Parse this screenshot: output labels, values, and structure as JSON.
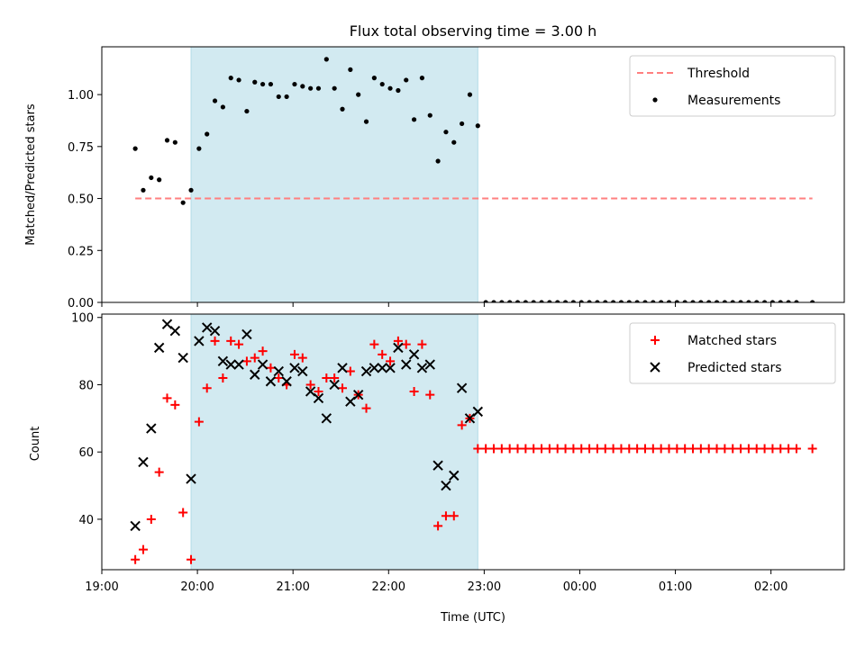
{
  "chart_data": [
    {
      "type": "scatter",
      "panel": "top",
      "title": "Flux total observing time = 3.00 h",
      "xlabel": "",
      "ylabel": "Matched/Predicted stars",
      "x_axis": "time (UTC)",
      "xlim": [
        "19:00",
        "02:46"
      ],
      "ylim": [
        0.0,
        1.23
      ],
      "yticks": [
        0.0,
        0.25,
        0.5,
        0.75,
        1.0
      ],
      "ytick_labels": [
        "0.00",
        "0.25",
        "0.50",
        "0.75",
        "1.00"
      ],
      "show_xtick_labels": false,
      "shaded_interval": [
        "19:56",
        "22:56"
      ],
      "shade_color": "#add8e6",
      "legend": {
        "position": "upper right",
        "entries": [
          "Threshold",
          "Measurements"
        ]
      },
      "series": [
        {
          "name": "Threshold",
          "kind": "dashed-line",
          "color": "#ff7f7f",
          "x": [
            "19:21",
            "02:26"
          ],
          "y": [
            0.5,
            0.5
          ]
        },
        {
          "name": "Measurements",
          "kind": "dot",
          "color": "#000000",
          "x": [
            "19:21",
            "19:26",
            "19:31",
            "19:36",
            "19:41",
            "19:46",
            "19:51",
            "19:56",
            "20:01",
            "20:06",
            "20:11",
            "20:16",
            "20:21",
            "20:26",
            "20:31",
            "20:36",
            "20:41",
            "20:46",
            "20:51",
            "20:56",
            "21:01",
            "21:06",
            "21:11",
            "21:16",
            "21:21",
            "21:26",
            "21:31",
            "21:36",
            "21:41",
            "21:46",
            "21:51",
            "21:56",
            "22:01",
            "22:06",
            "22:11",
            "22:16",
            "22:21",
            "22:26",
            "22:31",
            "22:36",
            "22:41",
            "22:46",
            "22:51",
            "22:56",
            "23:01",
            "23:06",
            "23:11",
            "23:16",
            "23:21",
            "23:26",
            "23:31",
            "23:36",
            "23:41",
            "23:46",
            "23:51",
            "23:56",
            "00:01",
            "00:06",
            "00:11",
            "00:16",
            "00:21",
            "00:26",
            "00:31",
            "00:36",
            "00:41",
            "00:46",
            "00:51",
            "00:56",
            "01:01",
            "01:06",
            "01:11",
            "01:16",
            "01:21",
            "01:26",
            "01:31",
            "01:36",
            "01:41",
            "01:46",
            "01:51",
            "01:56",
            "02:01",
            "02:06",
            "02:11",
            "02:16",
            "02:26"
          ],
          "y": [
            0.74,
            0.54,
            0.6,
            0.59,
            0.78,
            0.77,
            0.48,
            0.54,
            0.74,
            0.81,
            0.97,
            0.94,
            1.08,
            1.07,
            0.92,
            1.06,
            1.05,
            1.05,
            0.99,
            0.99,
            1.05,
            1.04,
            1.03,
            1.03,
            1.17,
            1.03,
            0.93,
            1.12,
            1.0,
            0.87,
            1.08,
            1.05,
            1.03,
            1.02,
            1.07,
            0.88,
            1.08,
            0.9,
            0.68,
            0.82,
            0.77,
            0.86,
            1.0,
            0.85,
            0,
            0,
            0,
            0,
            0,
            0,
            0,
            0,
            0,
            0,
            0,
            0,
            0,
            0,
            0,
            0,
            0,
            0,
            0,
            0,
            0,
            0,
            0,
            0,
            0,
            0,
            0,
            0,
            0,
            0,
            0,
            0,
            0,
            0,
            0,
            0,
            0,
            0,
            0,
            0,
            0
          ]
        }
      ]
    },
    {
      "type": "scatter",
      "panel": "bottom",
      "xlabel": "Time (UTC)",
      "ylabel": "Count",
      "xlim": [
        "19:00",
        "02:46"
      ],
      "ylim": [
        25,
        101
      ],
      "yticks": [
        40,
        60,
        80,
        100
      ],
      "ytick_labels": [
        "40",
        "60",
        "80",
        "100"
      ],
      "xticks": [
        "19:00",
        "20:00",
        "21:00",
        "22:00",
        "23:00",
        "00:00",
        "01:00",
        "02:00"
      ],
      "xtick_labels": [
        "19:00",
        "20:00",
        "21:00",
        "22:00",
        "23:00",
        "00:00",
        "01:00",
        "02:00"
      ],
      "shaded_interval": [
        "19:56",
        "22:56"
      ],
      "shade_color": "#add8e6",
      "legend": {
        "position": "upper right",
        "entries": [
          "Matched stars",
          "Predicted stars"
        ]
      },
      "series": [
        {
          "name": "Matched stars",
          "kind": "plus",
          "color": "#ff0000",
          "x": [
            "19:21",
            "19:26",
            "19:31",
            "19:36",
            "19:41",
            "19:46",
            "19:51",
            "19:56",
            "20:01",
            "20:06",
            "20:11",
            "20:16",
            "20:21",
            "20:26",
            "20:31",
            "20:36",
            "20:41",
            "20:46",
            "20:51",
            "20:56",
            "21:01",
            "21:06",
            "21:11",
            "21:16",
            "21:21",
            "21:26",
            "21:31",
            "21:36",
            "21:41",
            "21:46",
            "21:51",
            "21:56",
            "22:01",
            "22:06",
            "22:11",
            "22:16",
            "22:21",
            "22:26",
            "22:31",
            "22:36",
            "22:41",
            "22:46",
            "22:51",
            "22:56",
            "23:01",
            "23:06",
            "23:11",
            "23:16",
            "23:21",
            "23:26",
            "23:31",
            "23:36",
            "23:41",
            "23:46",
            "23:51",
            "23:56",
            "00:01",
            "00:06",
            "00:11",
            "00:16",
            "00:21",
            "00:26",
            "00:31",
            "00:36",
            "00:41",
            "00:46",
            "00:51",
            "00:56",
            "01:01",
            "01:06",
            "01:11",
            "01:16",
            "01:21",
            "01:26",
            "01:31",
            "01:36",
            "01:41",
            "01:46",
            "01:51",
            "01:56",
            "02:01",
            "02:06",
            "02:11",
            "02:16",
            "02:26"
          ],
          "y": [
            28,
            31,
            40,
            54,
            76,
            74,
            42,
            28,
            69,
            79,
            93,
            82,
            93,
            92,
            87,
            88,
            90,
            85,
            82,
            80,
            89,
            88,
            80,
            78,
            82,
            82,
            79,
            84,
            77,
            73,
            92,
            89,
            87,
            93,
            92,
            78,
            92,
            77,
            38,
            41,
            41,
            68,
            70,
            61,
            61,
            61,
            61,
            61,
            61,
            61,
            61,
            61,
            61,
            61,
            61,
            61,
            61,
            61,
            61,
            61,
            61,
            61,
            61,
            61,
            61,
            61,
            61,
            61,
            61,
            61,
            61,
            61,
            61,
            61,
            61,
            61,
            61,
            61,
            61,
            61,
            61,
            61,
            61,
            61,
            61
          ]
        },
        {
          "name": "Predicted stars",
          "kind": "x",
          "color": "#000000",
          "x": [
            "19:21",
            "19:26",
            "19:31",
            "19:36",
            "19:41",
            "19:46",
            "19:51",
            "19:56",
            "20:01",
            "20:06",
            "20:11",
            "20:16",
            "20:21",
            "20:26",
            "20:31",
            "20:36",
            "20:41",
            "20:46",
            "20:51",
            "20:56",
            "21:01",
            "21:06",
            "21:11",
            "21:16",
            "21:21",
            "21:26",
            "21:31",
            "21:36",
            "21:41",
            "21:46",
            "21:51",
            "21:56",
            "22:01",
            "22:06",
            "22:11",
            "22:16",
            "22:21",
            "22:26",
            "22:31",
            "22:36",
            "22:41",
            "22:46",
            "22:51",
            "22:56"
          ],
          "y": [
            38,
            57,
            67,
            91,
            98,
            96,
            88,
            52,
            93,
            97,
            96,
            87,
            86,
            86,
            95,
            83,
            86,
            81,
            84,
            81,
            85,
            84,
            78,
            76,
            70,
            80,
            85,
            75,
            77,
            84,
            85,
            85,
            85,
            91,
            86,
            89,
            85,
            86,
            56,
            50,
            53,
            79,
            70,
            72
          ]
        }
      ]
    }
  ]
}
